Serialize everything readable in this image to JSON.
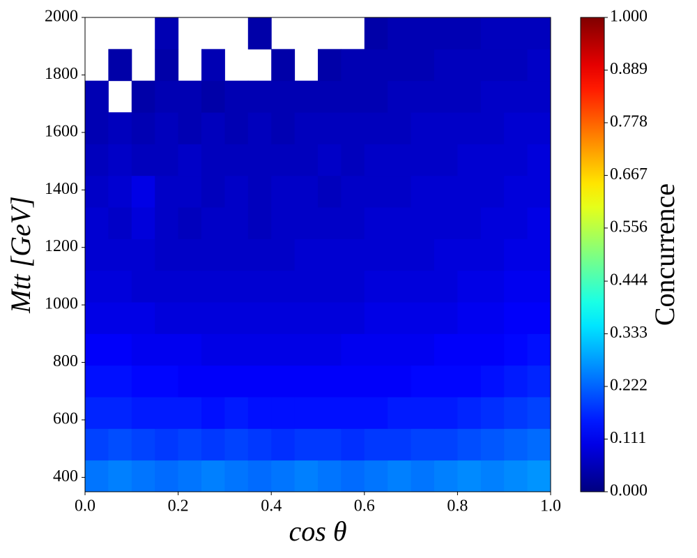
{
  "chart_data": {
    "type": "heatmap",
    "x_label": "cos θ",
    "y_label": "Mtt [GeV]",
    "colorbar_label": "Concurrence",
    "colormap": "jet",
    "xbins": [
      0,
      0.05,
      0.1,
      0.15,
      0.2,
      0.25,
      0.3,
      0.35,
      0.4,
      0.45,
      0.5,
      0.55,
      0.6,
      0.65,
      0.7,
      0.75,
      0.8,
      0.85,
      0.9,
      0.95,
      1.0
    ],
    "ybins": [
      350,
      460,
      570,
      680,
      790,
      900,
      1010,
      1120,
      1230,
      1340,
      1450,
      1560,
      1670,
      1780,
      1890,
      2000
    ],
    "z": [
      [
        0.24,
        0.25,
        0.24,
        0.23,
        0.24,
        0.25,
        0.24,
        0.23,
        0.24,
        0.25,
        0.24,
        0.23,
        0.24,
        0.25,
        0.24,
        0.25,
        0.26,
        0.25,
        0.26,
        0.27
      ],
      [
        0.19,
        0.2,
        0.19,
        0.18,
        0.19,
        0.18,
        0.19,
        0.18,
        0.17,
        0.18,
        0.18,
        0.17,
        0.18,
        0.18,
        0.19,
        0.19,
        0.2,
        0.21,
        0.22,
        0.23
      ],
      [
        0.16,
        0.16,
        0.15,
        0.15,
        0.15,
        0.14,
        0.15,
        0.14,
        0.14,
        0.14,
        0.14,
        0.14,
        0.14,
        0.15,
        0.15,
        0.15,
        0.16,
        0.17,
        0.18,
        0.19
      ],
      [
        0.14,
        0.14,
        0.13,
        0.13,
        0.12,
        0.12,
        0.12,
        0.12,
        0.12,
        0.12,
        0.12,
        0.12,
        0.12,
        0.12,
        0.13,
        0.13,
        0.13,
        0.14,
        0.15,
        0.16
      ],
      [
        0.12,
        0.12,
        0.11,
        0.11,
        0.11,
        0.1,
        0.1,
        0.1,
        0.1,
        0.1,
        0.1,
        0.11,
        0.11,
        0.11,
        0.11,
        0.12,
        0.12,
        0.12,
        0.13,
        0.14
      ],
      [
        0.1,
        0.1,
        0.1,
        0.09,
        0.09,
        0.09,
        0.09,
        0.09,
        0.09,
        0.09,
        0.09,
        0.09,
        0.1,
        0.1,
        0.1,
        0.1,
        0.11,
        0.11,
        0.12,
        0.12
      ],
      [
        0.09,
        0.09,
        0.08,
        0.08,
        0.08,
        0.08,
        0.08,
        0.08,
        0.08,
        0.08,
        0.08,
        0.08,
        0.09,
        0.09,
        0.09,
        0.09,
        0.1,
        0.1,
        0.11,
        0.11
      ],
      [
        0.08,
        0.08,
        0.08,
        0.07,
        0.07,
        0.07,
        0.07,
        0.07,
        0.07,
        0.08,
        0.08,
        0.08,
        0.08,
        0.08,
        0.08,
        0.09,
        0.09,
        0.09,
        0.1,
        0.1
      ],
      [
        0.08,
        0.07,
        0.09,
        0.07,
        0.06,
        0.07,
        0.07,
        0.06,
        0.07,
        0.07,
        0.07,
        0.07,
        0.08,
        0.08,
        0.08,
        0.08,
        0.08,
        0.09,
        0.09,
        0.1
      ],
      [
        0.07,
        0.08,
        0.1,
        0.07,
        0.07,
        0.06,
        0.07,
        0.06,
        0.07,
        0.07,
        0.06,
        0.07,
        0.07,
        0.07,
        0.08,
        0.08,
        0.08,
        0.08,
        0.09,
        0.09
      ],
      [
        0.06,
        0.07,
        0.06,
        0.06,
        0.07,
        0.06,
        0.06,
        0.06,
        0.06,
        0.06,
        0.07,
        0.06,
        0.07,
        0.07,
        0.07,
        0.07,
        0.08,
        0.08,
        0.08,
        0.09
      ],
      [
        0.05,
        0.06,
        0.05,
        0.06,
        0.05,
        0.06,
        0.05,
        0.06,
        0.05,
        0.06,
        0.06,
        0.06,
        0.06,
        0.06,
        0.07,
        0.07,
        0.07,
        0.07,
        0.08,
        0.08
      ],
      [
        0.05,
        null,
        0.04,
        0.05,
        0.05,
        0.04,
        0.05,
        0.05,
        0.05,
        0.05,
        0.05,
        0.05,
        0.05,
        0.06,
        0.06,
        0.06,
        0.06,
        0.07,
        0.07,
        0.07
      ],
      [
        null,
        0.04,
        null,
        0.04,
        null,
        0.05,
        null,
        null,
        0.04,
        null,
        0.04,
        0.05,
        0.05,
        0.05,
        0.05,
        0.06,
        0.06,
        0.06,
        0.06,
        0.07
      ],
      [
        null,
        null,
        null,
        0.05,
        null,
        null,
        null,
        0.04,
        null,
        null,
        null,
        null,
        0.04,
        0.05,
        0.05,
        0.05,
        0.05,
        0.06,
        0.06,
        0.06
      ]
    ],
    "xlim": [
      0,
      1
    ],
    "xticks": [
      {
        "value": 0,
        "label": "0.0"
      },
      0.2,
      0.4,
      0.6,
      0.8,
      {
        "value": 1,
        "label": "1.0"
      }
    ],
    "ylim": [
      350,
      2000
    ],
    "yticks": [
      400,
      600,
      800,
      1000,
      1200,
      1400,
      1600,
      1800,
      2000
    ],
    "clim": [
      0,
      1
    ],
    "cticks": [
      {
        "value": 0,
        "label": "0.000"
      },
      0.111,
      0.222,
      0.333,
      0.444,
      0.556,
      0.667,
      0.778,
      0.889,
      {
        "value": 1,
        "label": "1.000"
      }
    ]
  }
}
